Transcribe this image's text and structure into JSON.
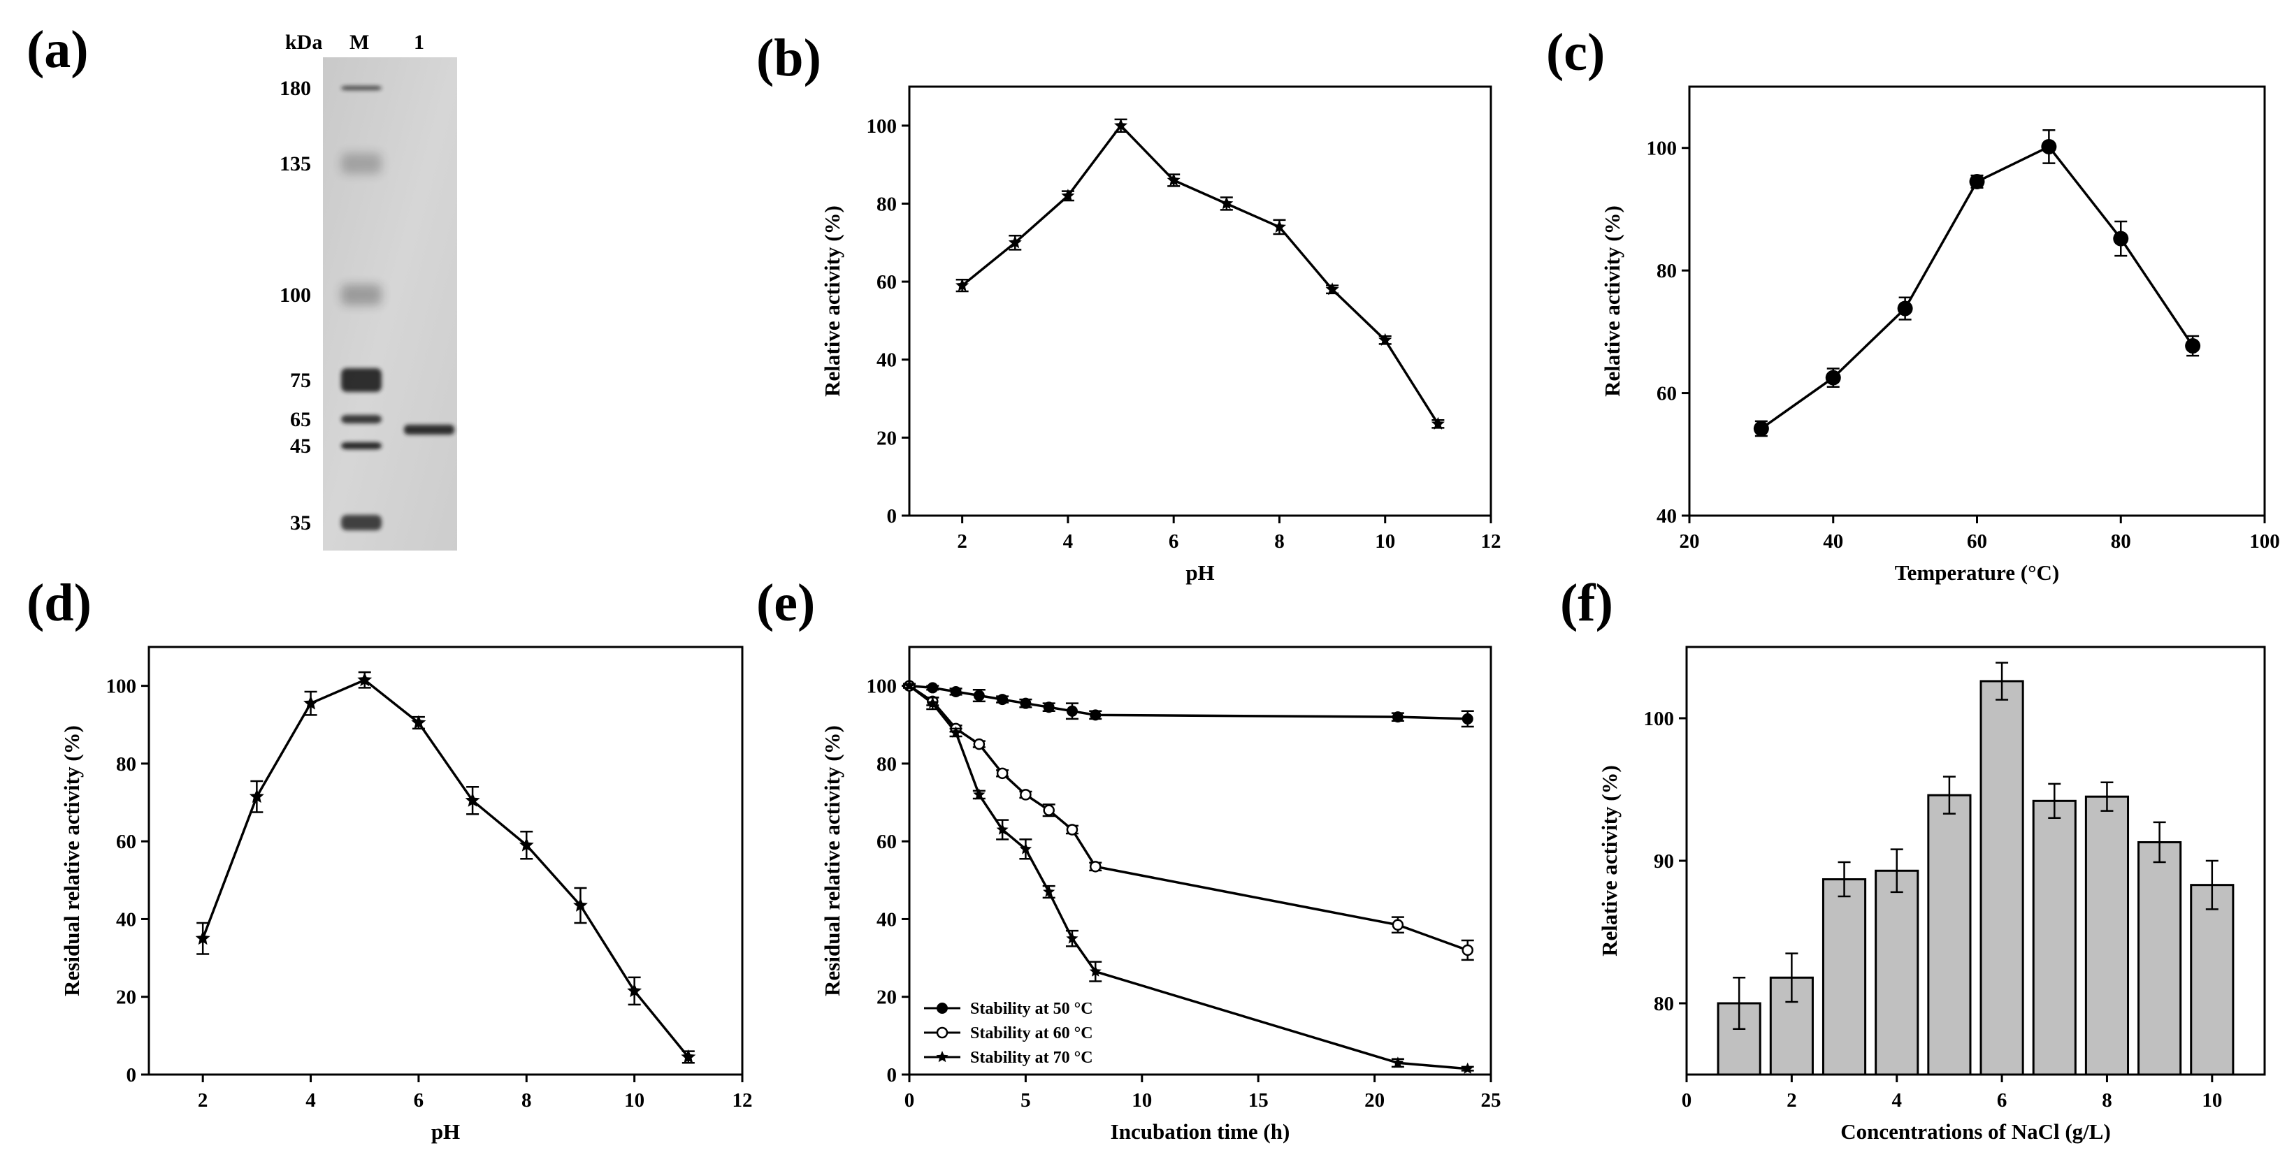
{
  "figure": {
    "panel_labels": [
      "(a)",
      "(b)",
      "(c)",
      "(d)",
      "(e)",
      "(f)"
    ]
  },
  "gel": {
    "unit_label": "kDa",
    "lane_labels": [
      "M",
      "1"
    ],
    "markers": [
      "180",
      "135",
      "100",
      "75",
      "65",
      "45",
      "35"
    ],
    "marker_values": [
      180,
      135,
      100,
      75,
      65,
      45,
      35
    ]
  },
  "chart_data": [
    {
      "id": "b",
      "type": "line",
      "title": "",
      "xlabel": "pH",
      "ylabel": "Relative activity (%)",
      "xlim": [
        1,
        12
      ],
      "ylim": [
        0,
        110
      ],
      "xticks": [
        2,
        4,
        6,
        8,
        10,
        12
      ],
      "yticks": [
        0,
        20,
        40,
        60,
        80,
        100
      ],
      "grid": false,
      "series": [
        {
          "name": "Relative activity",
          "marker": "star",
          "x": [
            2,
            3,
            4,
            5,
            6,
            7,
            8,
            9,
            10,
            11
          ],
          "y": [
            59,
            70,
            82,
            100,
            86,
            80,
            74,
            58,
            45,
            23.5
          ],
          "err": [
            1.5,
            1.8,
            1.2,
            1.6,
            1.5,
            1.6,
            1.8,
            1.0,
            1.0,
            1.0
          ]
        }
      ]
    },
    {
      "id": "c",
      "type": "line",
      "title": "",
      "xlabel": "Temperature (°C)",
      "ylabel": "Relative activity (%)",
      "xlim": [
        20,
        100
      ],
      "ylim": [
        40,
        110
      ],
      "xticks": [
        20,
        40,
        60,
        80,
        100
      ],
      "yticks": [
        40,
        60,
        80,
        100
      ],
      "grid": false,
      "series": [
        {
          "name": "Relative activity",
          "marker": "filled-circle",
          "x": [
            30,
            40,
            50,
            60,
            70,
            80,
            90
          ],
          "y": [
            54.2,
            62.5,
            73.8,
            94.5,
            100.2,
            85.2,
            67.7
          ],
          "err": [
            1.2,
            1.5,
            1.8,
            1.0,
            2.7,
            2.8,
            1.6
          ]
        }
      ]
    },
    {
      "id": "d",
      "type": "line",
      "title": "",
      "xlabel": "pH",
      "ylabel": "Residual relative activity (%)",
      "xlim": [
        1,
        12
      ],
      "ylim": [
        0,
        110
      ],
      "xticks": [
        2,
        4,
        6,
        8,
        10,
        12
      ],
      "yticks": [
        0,
        20,
        40,
        60,
        80,
        100
      ],
      "grid": false,
      "series": [
        {
          "name": "Residual relative activity",
          "marker": "star",
          "x": [
            2,
            3,
            4,
            5,
            6,
            7,
            8,
            9,
            10,
            11
          ],
          "y": [
            35,
            71.5,
            95.5,
            101.5,
            90.5,
            70.5,
            59,
            43.5,
            21.5,
            4.5
          ],
          "err": [
            4,
            4,
            3,
            2,
            1.5,
            3.5,
            3.5,
            4.5,
            3.5,
            1.5
          ]
        }
      ]
    },
    {
      "id": "e",
      "type": "line",
      "title": "",
      "xlabel": "Incubation time (h)",
      "ylabel": "Residual relative activity (%)",
      "xlim": [
        0,
        25
      ],
      "ylim": [
        0,
        110
      ],
      "xticks": [
        0,
        5,
        10,
        15,
        20,
        25
      ],
      "yticks": [
        0,
        20,
        40,
        60,
        80,
        100
      ],
      "grid": false,
      "legend": "bottom-left",
      "series": [
        {
          "name": "Stability at 50 °C",
          "marker": "filled-circle",
          "x": [
            0,
            1,
            2,
            3,
            4,
            5,
            6,
            7,
            8,
            21,
            24
          ],
          "y": [
            100,
            99.5,
            98.5,
            97.5,
            96.5,
            95.5,
            94.5,
            93.5,
            92.5,
            92,
            91.5
          ],
          "err": [
            0.5,
            0.5,
            0.8,
            1.5,
            0.8,
            1.0,
            1.0,
            2.0,
            1.0,
            1.0,
            2.0
          ]
        },
        {
          "name": "Stability at 60 °C",
          "marker": "open-circle",
          "x": [
            0,
            1,
            2,
            3,
            4,
            5,
            6,
            7,
            8,
            21,
            24
          ],
          "y": [
            100,
            96,
            89,
            85,
            77.5,
            72,
            68,
            63,
            53.5,
            38.5,
            32
          ],
          "err": [
            0.5,
            1.0,
            0.8,
            0.8,
            0.8,
            0.8,
            1.5,
            1.0,
            1.0,
            2.0,
            2.5
          ]
        },
        {
          "name": "Stability at 70 °C",
          "marker": "star",
          "x": [
            0,
            1,
            2,
            3,
            4,
            5,
            6,
            7,
            8,
            21,
            24
          ],
          "y": [
            100,
            95.5,
            88,
            72,
            63,
            58,
            47,
            35,
            26.5,
            3,
            1.5
          ],
          "err": [
            0.5,
            1.5,
            1.0,
            1.0,
            2.5,
            2.5,
            1.5,
            2.0,
            2.5,
            1.0,
            0.5
          ]
        }
      ]
    },
    {
      "id": "f",
      "type": "bar",
      "title": "",
      "xlabel": "Concentrations of NaCl (g/L)",
      "ylabel": "Relative activity (%)",
      "xlim": [
        0,
        11
      ],
      "ylim": [
        75,
        105
      ],
      "xticks": [
        0,
        2,
        4,
        6,
        8,
        10
      ],
      "yticks": [
        80,
        90,
        100
      ],
      "grid": false,
      "x": [
        1,
        2,
        3,
        4,
        5,
        6,
        7,
        8,
        9,
        10
      ],
      "values": [
        80,
        81.8,
        88.7,
        89.3,
        94.6,
        102.6,
        94.2,
        94.5,
        91.3,
        88.3
      ],
      "err": [
        1.8,
        1.7,
        1.2,
        1.5,
        1.3,
        1.3,
        1.2,
        1.0,
        1.4,
        1.7
      ],
      "bar_color": "#c0c0c0"
    }
  ]
}
